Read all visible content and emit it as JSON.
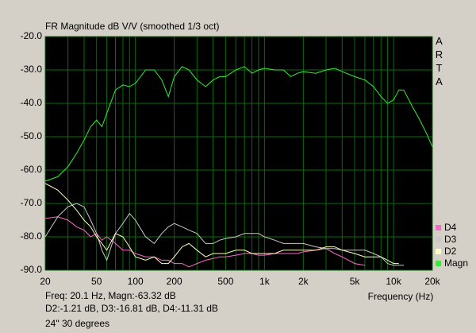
{
  "chart_data": {
    "type": "line",
    "title": "FR Magnitude dB V/V (smoothed 1/3 oct)",
    "watermark": "ARTA",
    "xlabel": "Frequency (Hz)",
    "info": [
      "Freq: 20.1 Hz, Magn:-63.32 dB",
      "D2:-1.21 dB, D3:-16.81 dB, D4:-11.31 dB",
      "24\" 30 degrees"
    ],
    "xscale": "log",
    "grid": true,
    "legend": "lower right",
    "x": [
      20,
      25,
      30,
      35,
      40,
      45,
      50,
      55,
      60,
      70,
      80,
      90,
      100,
      120,
      140,
      160,
      180,
      200,
      230,
      260,
      300,
      350,
      400,
      450,
      500,
      600,
      700,
      800,
      900,
      1000,
      1200,
      1400,
      1600,
      1800,
      2000,
      2500,
      3000,
      3500,
      4000,
      5000,
      6000,
      7000,
      8000,
      9000,
      10000,
      11000,
      12000,
      14000,
      16000,
      18000,
      20000
    ],
    "xlim": [
      20,
      20000
    ],
    "xticks": [
      20,
      50,
      100,
      200,
      500,
      {
        "value": 1000,
        "label": "1k"
      },
      {
        "value": 2000,
        "label": "2k"
      },
      {
        "value": 5000,
        "label": "5k"
      },
      {
        "value": 10000,
        "label": "10k"
      },
      {
        "value": 20000,
        "label": "20k"
      }
    ],
    "xminor_ticks": [
      30,
      40,
      60,
      70,
      80,
      90,
      300,
      400,
      600,
      700,
      800,
      900,
      3000,
      4000,
      6000,
      7000,
      8000,
      9000
    ],
    "ylim": [
      -90,
      -20
    ],
    "yticks": [
      {
        "value": -20,
        "label": "-20.0"
      },
      {
        "value": -30,
        "label": "-30.0"
      },
      {
        "value": -40,
        "label": "-40.0"
      },
      {
        "value": -50,
        "label": "-50.0"
      },
      {
        "value": -60,
        "label": "-60.0"
      },
      {
        "value": -70,
        "label": "-70.0"
      },
      {
        "value": -80,
        "label": "-80.0"
      },
      {
        "value": -90,
        "label": "-90.0"
      }
    ],
    "series": [
      {
        "name": "D4",
        "color": "#ff66cc",
        "values": [
          -74.5,
          -74,
          -75,
          -77,
          -78,
          -80,
          -79,
          -81,
          -80,
          -82,
          -84,
          -84,
          -85,
          -86,
          -86,
          -87,
          -87,
          -88,
          -88,
          -89,
          -88,
          -87,
          -86.5,
          -86,
          -86,
          -85.5,
          -85,
          -85,
          -85.5,
          -85.5,
          -85,
          -85,
          -85,
          -85,
          -84.5,
          -84,
          -83.5,
          -85,
          -86,
          -88,
          -88.5,
          null,
          null,
          null,
          null,
          null,
          null,
          null,
          null,
          null,
          null
        ]
      },
      {
        "name": "D3",
        "color": "#c8c8c8",
        "values": [
          -80,
          -74,
          -71,
          -70,
          -71,
          -75,
          -79,
          -84,
          -87,
          -79,
          -76,
          -73,
          -75,
          -80,
          -82,
          -79,
          -77,
          -76,
          -77,
          -78,
          -79,
          -82,
          -82,
          -81,
          -80.5,
          -80,
          -79,
          -79,
          -79,
          -80,
          -81,
          -82,
          -82,
          -82,
          -82,
          -83,
          -83.5,
          -83.5,
          -84,
          -84,
          -84,
          -85,
          -86,
          -88,
          -88.5,
          -88.5,
          -88.5,
          null,
          null,
          null,
          null
        ]
      },
      {
        "name": "D2",
        "color": "#ffffc0",
        "values": [
          -64,
          -66,
          -69,
          -72,
          -75,
          -77,
          -80,
          -82,
          -84,
          -79,
          -80,
          -83,
          -86,
          -87,
          -86,
          -88,
          -88,
          -86,
          -83,
          -82,
          -84,
          -86,
          -85,
          -85,
          -85,
          -84,
          -84,
          -85,
          -85,
          -85,
          -85,
          -84,
          -84,
          -84,
          -84,
          -84,
          -83,
          -83,
          -84,
          -85,
          -86,
          -86,
          -86,
          -87,
          -88,
          -88,
          null,
          null,
          null,
          null,
          null
        ]
      },
      {
        "name": "Magn",
        "color": "#33ee33",
        "values": [
          -63.3,
          -62,
          -59,
          -55,
          -51,
          -47,
          -45,
          -47,
          -43,
          -36,
          -34.5,
          -35,
          -34,
          -30,
          -30,
          -33,
          -38,
          -32,
          -29,
          -30,
          -33,
          -35,
          -33,
          -32,
          -32,
          -30,
          -29,
          -31,
          -30,
          -29.5,
          -30,
          -30,
          -32,
          -31,
          -30.5,
          -31,
          -30,
          -29.5,
          -30.5,
          -32,
          -33,
          -35,
          -38,
          -40,
          -39,
          -36,
          -36,
          -41,
          -45,
          -49,
          -53
        ]
      }
    ]
  }
}
